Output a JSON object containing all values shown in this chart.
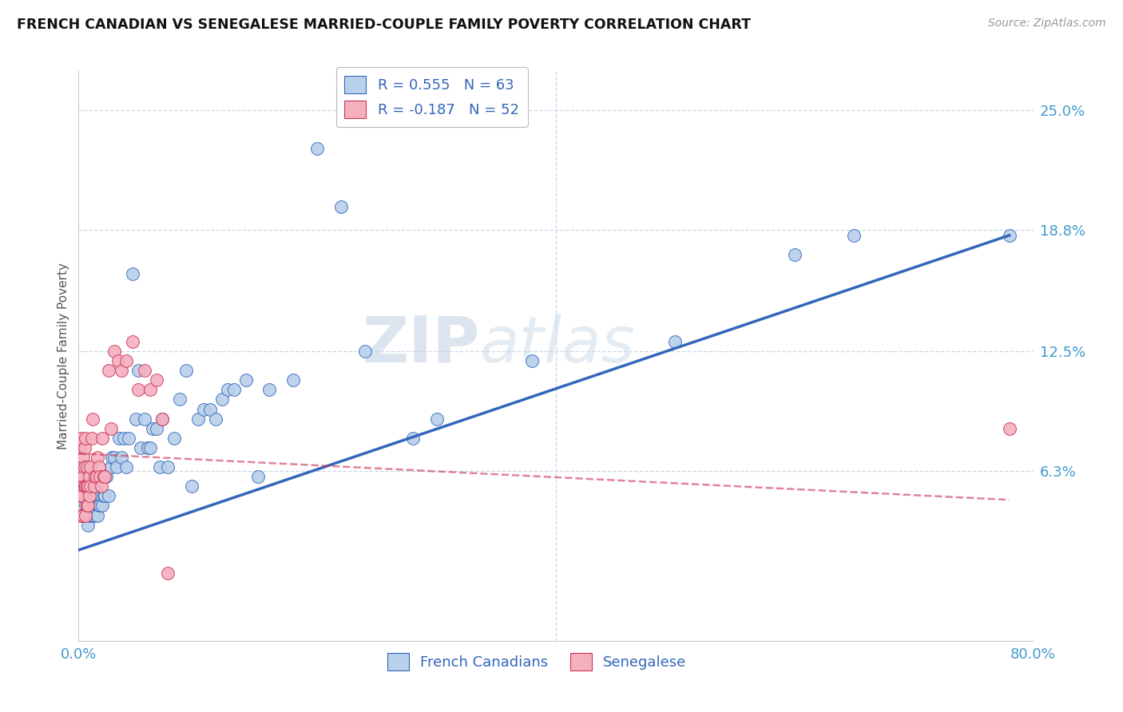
{
  "title": "FRENCH CANADIAN VS SENEGALESE MARRIED-COUPLE FAMILY POVERTY CORRELATION CHART",
  "source": "Source: ZipAtlas.com",
  "ylabel": "Married-Couple Family Poverty",
  "ytick_labels": [
    "25.0%",
    "18.8%",
    "12.5%",
    "6.3%"
  ],
  "ytick_values": [
    0.25,
    0.188,
    0.125,
    0.063
  ],
  "xlim": [
    0.0,
    0.8
  ],
  "ylim": [
    -0.025,
    0.27
  ],
  "legend_r1": "R = 0.555",
  "legend_n1": "N = 63",
  "legend_r2": "R = -0.187",
  "legend_n2": "N = 52",
  "color_french": "#b8d0ea",
  "color_senegalese": "#f4b0bf",
  "trendline_french_color": "#3366bb",
  "trendline_senegalese_color": "#cc3355",
  "watermark_zip": "ZIP",
  "watermark_atlas": "atlas",
  "french_canadians_x": [
    0.004,
    0.006,
    0.008,
    0.01,
    0.012,
    0.013,
    0.014,
    0.015,
    0.016,
    0.017,
    0.018,
    0.019,
    0.02,
    0.021,
    0.022,
    0.023,
    0.025,
    0.027,
    0.028,
    0.03,
    0.032,
    0.034,
    0.036,
    0.038,
    0.04,
    0.042,
    0.045,
    0.048,
    0.05,
    0.052,
    0.055,
    0.058,
    0.06,
    0.062,
    0.065,
    0.068,
    0.07,
    0.075,
    0.08,
    0.085,
    0.09,
    0.095,
    0.1,
    0.105,
    0.11,
    0.115,
    0.12,
    0.125,
    0.13,
    0.14,
    0.15,
    0.16,
    0.18,
    0.2,
    0.22,
    0.24,
    0.28,
    0.3,
    0.38,
    0.5,
    0.6,
    0.65,
    0.78
  ],
  "french_canadians_y": [
    0.04,
    0.045,
    0.035,
    0.04,
    0.04,
    0.045,
    0.04,
    0.05,
    0.04,
    0.045,
    0.045,
    0.05,
    0.045,
    0.05,
    0.05,
    0.06,
    0.05,
    0.065,
    0.07,
    0.07,
    0.065,
    0.08,
    0.07,
    0.08,
    0.065,
    0.08,
    0.165,
    0.09,
    0.115,
    0.075,
    0.09,
    0.075,
    0.075,
    0.085,
    0.085,
    0.065,
    0.09,
    0.065,
    0.08,
    0.1,
    0.115,
    0.055,
    0.09,
    0.095,
    0.095,
    0.09,
    0.1,
    0.105,
    0.105,
    0.11,
    0.06,
    0.105,
    0.11,
    0.23,
    0.2,
    0.125,
    0.08,
    0.09,
    0.12,
    0.13,
    0.175,
    0.185,
    0.185
  ],
  "senegalese_x": [
    0.001,
    0.001,
    0.002,
    0.002,
    0.002,
    0.003,
    0.003,
    0.003,
    0.004,
    0.004,
    0.004,
    0.005,
    0.005,
    0.005,
    0.006,
    0.006,
    0.006,
    0.007,
    0.007,
    0.007,
    0.008,
    0.008,
    0.009,
    0.009,
    0.01,
    0.01,
    0.011,
    0.012,
    0.013,
    0.014,
    0.015,
    0.016,
    0.017,
    0.018,
    0.019,
    0.02,
    0.021,
    0.022,
    0.025,
    0.027,
    0.03,
    0.033,
    0.036,
    0.04,
    0.045,
    0.05,
    0.055,
    0.06,
    0.065,
    0.07,
    0.075,
    0.78
  ],
  "senegalese_y": [
    0.075,
    0.05,
    0.08,
    0.06,
    0.04,
    0.065,
    0.055,
    0.05,
    0.07,
    0.06,
    0.04,
    0.075,
    0.065,
    0.055,
    0.08,
    0.055,
    0.04,
    0.065,
    0.055,
    0.045,
    0.055,
    0.045,
    0.06,
    0.05,
    0.065,
    0.055,
    0.08,
    0.09,
    0.055,
    0.06,
    0.06,
    0.07,
    0.065,
    0.06,
    0.055,
    0.08,
    0.06,
    0.06,
    0.115,
    0.085,
    0.125,
    0.12,
    0.115,
    0.12,
    0.13,
    0.105,
    0.115,
    0.105,
    0.11,
    0.09,
    0.01,
    0.085
  ],
  "trendline_fc_x0": 0.0,
  "trendline_fc_y0": 0.022,
  "trendline_fc_x1": 0.78,
  "trendline_fc_y1": 0.185,
  "trendline_sn_x0": 0.0,
  "trendline_sn_y0": 0.072,
  "trendline_sn_x1": 0.78,
  "trendline_sn_y1": 0.048
}
